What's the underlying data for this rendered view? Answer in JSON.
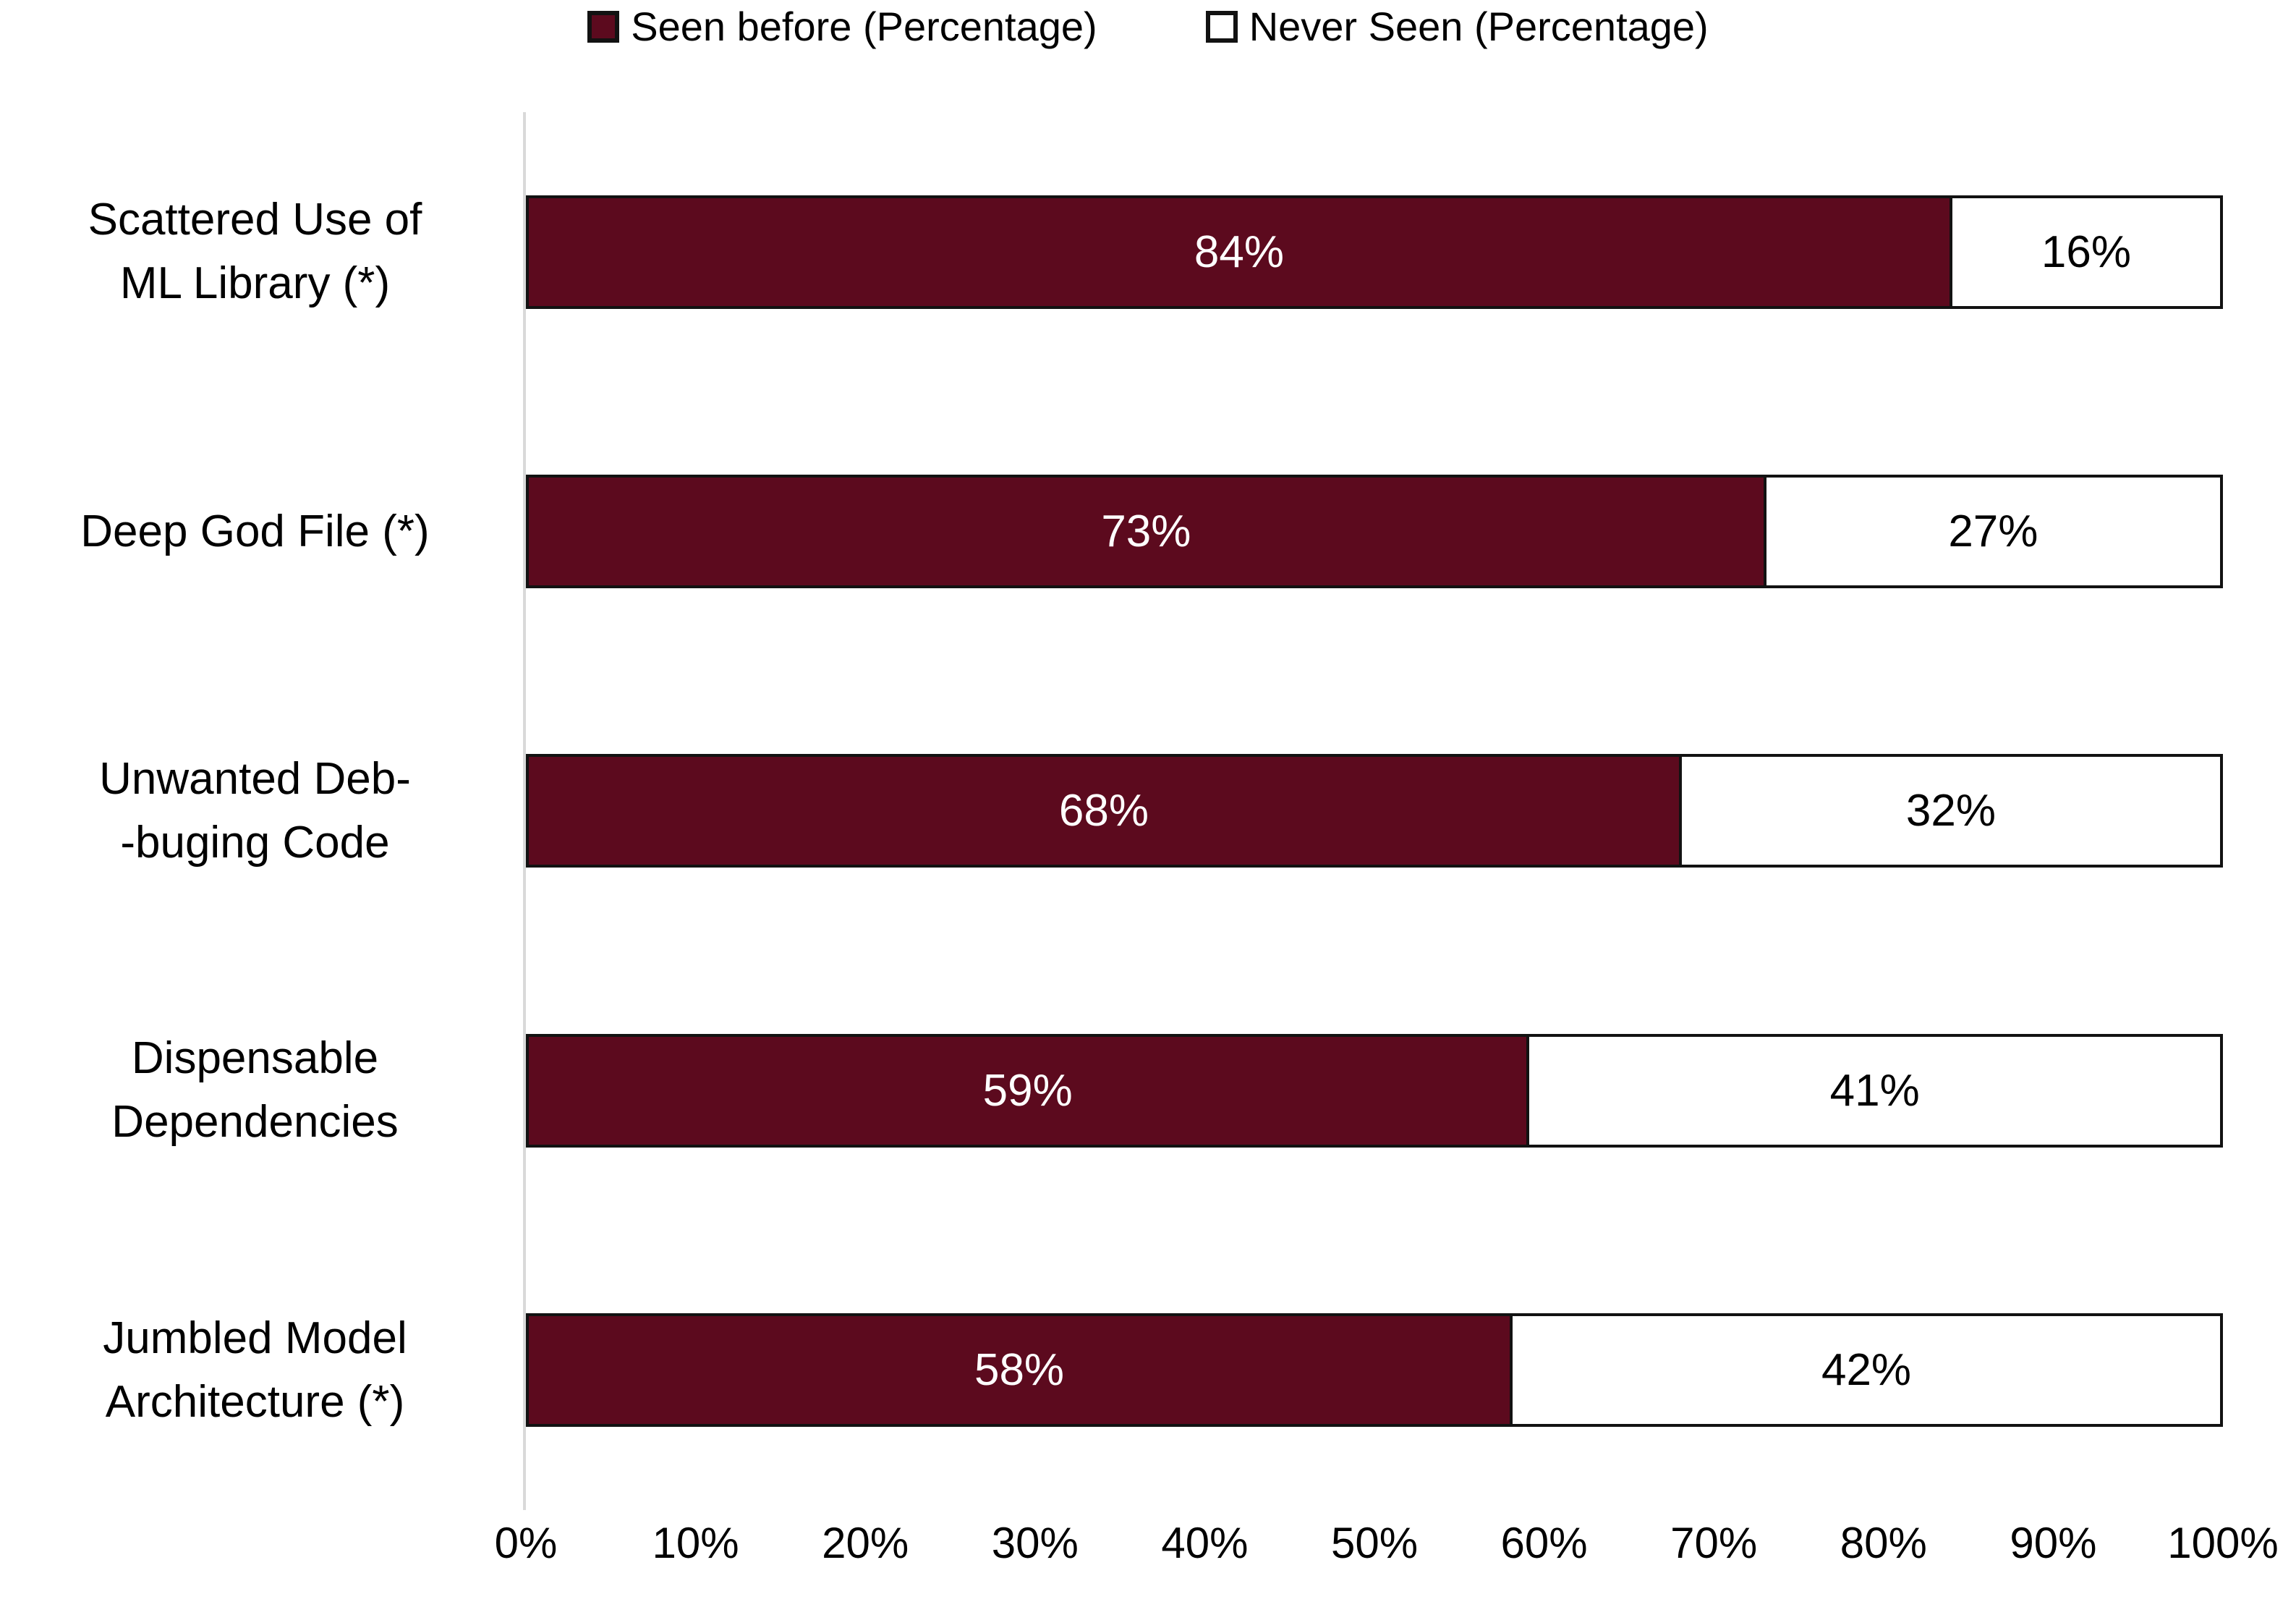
{
  "legend": {
    "position": "top"
  },
  "chart_data": {
    "type": "bar",
    "orientation": "horizontal",
    "stacked": true,
    "title": "",
    "xlabel": "",
    "ylabel": "",
    "categories": [
      "Scattered Use of\nML Library (*)",
      "Deep God File (*)",
      "Unwanted Deb-\n-buging Code",
      "Dispensable\nDependencies",
      "Jumbled Model\nArchitecture  (*)"
    ],
    "series": [
      {
        "name": "Seen before (Percentage)",
        "color": "#5C0A1E",
        "label_color": "#FFFFFF",
        "values": [
          84,
          73,
          68,
          59,
          58
        ]
      },
      {
        "name": "Never Seen (Percentage)",
        "color": "#FFFFFF",
        "label_color": "#000000",
        "values": [
          16,
          27,
          32,
          41,
          42
        ]
      }
    ],
    "value_suffix": "%",
    "data_labels": [
      "84%",
      "16%",
      "73%",
      "27%",
      "68%",
      "32%",
      "59%",
      "41%",
      "58%",
      "42%"
    ],
    "xlim": [
      0,
      100
    ],
    "x_ticks": [
      "0%",
      "10%",
      "20%",
      "30%",
      "40%",
      "50%",
      "60%",
      "70%",
      "80%",
      "90%",
      "100%"
    ],
    "legend_position": "top",
    "grid": false,
    "bar_border_color": "#121212",
    "axis_line_color": "#D9D9D9"
  }
}
